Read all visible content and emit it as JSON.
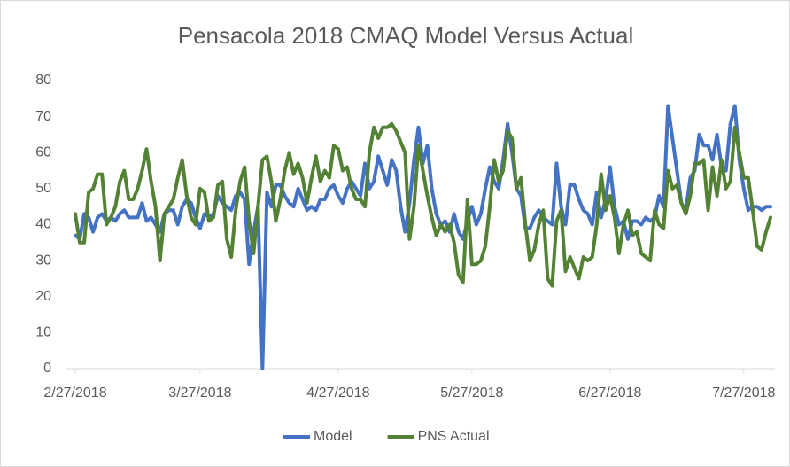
{
  "chart_data": {
    "type": "line",
    "title": "Pensacola 2018 CMAQ Model Versus Actual",
    "x": [
      "2/27/2018",
      "2/28/2018",
      "3/1/2018",
      "3/2/2018",
      "3/3/2018",
      "3/4/2018",
      "3/5/2018",
      "3/6/2018",
      "3/7/2018",
      "3/8/2018",
      "3/9/2018",
      "3/10/2018",
      "3/11/2018",
      "3/12/2018",
      "3/13/2018",
      "3/14/2018",
      "3/15/2018",
      "3/16/2018",
      "3/17/2018",
      "3/18/2018",
      "3/19/2018",
      "3/20/2018",
      "3/21/2018",
      "3/22/2018",
      "3/23/2018",
      "3/24/2018",
      "3/25/2018",
      "3/26/2018",
      "3/27/2018",
      "3/28/2018",
      "3/29/2018",
      "3/30/2018",
      "3/31/2018",
      "4/1/2018",
      "4/2/2018",
      "4/3/2018",
      "4/4/2018",
      "4/5/2018",
      "4/6/2018",
      "4/7/2018",
      "4/8/2018",
      "4/9/2018",
      "4/10/2018",
      "4/11/2018",
      "4/12/2018",
      "4/13/2018",
      "4/14/2018",
      "4/15/2018",
      "4/16/2018",
      "4/17/2018",
      "4/18/2018",
      "4/19/2018",
      "4/20/2018",
      "4/21/2018",
      "4/22/2018",
      "4/23/2018",
      "4/24/2018",
      "4/25/2018",
      "4/26/2018",
      "4/27/2018",
      "4/28/2018",
      "4/29/2018",
      "4/30/2018",
      "5/1/2018",
      "5/2/2018",
      "5/3/2018",
      "5/4/2018",
      "5/5/2018",
      "5/6/2018",
      "5/7/2018",
      "5/8/2018",
      "5/9/2018",
      "5/10/2018",
      "5/11/2018",
      "5/12/2018",
      "5/13/2018",
      "5/14/2018",
      "5/15/2018",
      "5/16/2018",
      "5/17/2018",
      "5/18/2018",
      "5/19/2018",
      "5/20/2018",
      "5/21/2018",
      "5/22/2018",
      "5/23/2018",
      "5/24/2018",
      "5/25/2018",
      "5/26/2018",
      "5/27/2018",
      "5/28/2018",
      "5/29/2018",
      "5/30/2018",
      "5/31/2018",
      "6/1/2018",
      "6/2/2018",
      "6/3/2018",
      "6/4/2018",
      "6/5/2018",
      "6/6/2018",
      "6/7/2018",
      "6/8/2018",
      "6/9/2018",
      "6/10/2018",
      "6/11/2018",
      "6/12/2018",
      "6/13/2018",
      "6/14/2018",
      "6/15/2018",
      "6/16/2018",
      "6/17/2018",
      "6/18/2018",
      "6/19/2018",
      "6/20/2018",
      "6/21/2018",
      "6/22/2018",
      "6/23/2018",
      "6/24/2018",
      "6/25/2018",
      "6/26/2018",
      "6/27/2018",
      "6/28/2018",
      "6/29/2018",
      "6/30/2018",
      "7/1/2018",
      "7/2/2018",
      "7/3/2018",
      "7/4/2018",
      "7/5/2018",
      "7/6/2018",
      "7/7/2018",
      "7/8/2018",
      "7/9/2018",
      "7/10/2018",
      "7/11/2018",
      "7/12/2018",
      "7/13/2018",
      "7/14/2018",
      "7/15/2018",
      "7/16/2018",
      "7/17/2018",
      "7/18/2018",
      "7/19/2018",
      "7/20/2018",
      "7/21/2018",
      "7/22/2018",
      "7/23/2018",
      "7/24/2018",
      "7/25/2018",
      "7/26/2018",
      "7/27/2018",
      "7/28/2018",
      "7/29/2018",
      "7/30/2018",
      "7/31/2018",
      "8/1/2018",
      "8/2/2018"
    ],
    "series": [
      {
        "name": "Model",
        "color": "#4472c4",
        "values": [
          37,
          36,
          43,
          42,
          38,
          42,
          43,
          41,
          42,
          41,
          43,
          44,
          42,
          42,
          42,
          46,
          41,
          42,
          40,
          38,
          43,
          44,
          44,
          40,
          45,
          47,
          46,
          42,
          39,
          43,
          42,
          43,
          48,
          46,
          45,
          44,
          48,
          49,
          47,
          29,
          38,
          45,
          0,
          49,
          45,
          51,
          51,
          48,
          46,
          45,
          50,
          47,
          44,
          45,
          44,
          47,
          47,
          50,
          51,
          48,
          46,
          50,
          52,
          50,
          48,
          57,
          50,
          52,
          59,
          55,
          51,
          58,
          55,
          45,
          38,
          46,
          58,
          67,
          57,
          62,
          50,
          43,
          40,
          41,
          38,
          43,
          38,
          36,
          41,
          45,
          40,
          43,
          50,
          56,
          52,
          50,
          58,
          68,
          60,
          50,
          48,
          39,
          39,
          42,
          44,
          42,
          41,
          40,
          57,
          45,
          40,
          51,
          51,
          47,
          44,
          43,
          40,
          49,
          42,
          47,
          56,
          45,
          40,
          41,
          36,
          41,
          41,
          40,
          42,
          41,
          42,
          48,
          45,
          73,
          64,
          55,
          46,
          44,
          53,
          55,
          65,
          62,
          62,
          58,
          65,
          56,
          55,
          68,
          73,
          58,
          50,
          44,
          45,
          45,
          44,
          45,
          45
        ]
      },
      {
        "name": "PNS Actual",
        "color": "#548235",
        "values": [
          43,
          35,
          35,
          49,
          50,
          54,
          54,
          40,
          42,
          45,
          52,
          55,
          47,
          47,
          50,
          55,
          61,
          52,
          45,
          30,
          43,
          45,
          47,
          53,
          58,
          48,
          42,
          40,
          50,
          49,
          41,
          42,
          51,
          52,
          36,
          31,
          44,
          52,
          56,
          41,
          32,
          45,
          58,
          59,
          52,
          41,
          47,
          55,
          60,
          54,
          57,
          53,
          46,
          53,
          59,
          52,
          55,
          53,
          62,
          61,
          55,
          56,
          50,
          47,
          47,
          45,
          60,
          67,
          64,
          67,
          67,
          68,
          66,
          63,
          60,
          36,
          45,
          62,
          55,
          48,
          42,
          37,
          40,
          38,
          40,
          35,
          26,
          24,
          47,
          29,
          29,
          30,
          34,
          45,
          58,
          52,
          55,
          66,
          64,
          50,
          53,
          40,
          30,
          33,
          40,
          44,
          25,
          23,
          41,
          44,
          27,
          31,
          28,
          25,
          31,
          30,
          31,
          40,
          54,
          44,
          48,
          42,
          32,
          40,
          44,
          37,
          38,
          32,
          31,
          30,
          44,
          40,
          39,
          55,
          50,
          51,
          46,
          43,
          48,
          57,
          57,
          58,
          44,
          56,
          48,
          58,
          50,
          52,
          67,
          60,
          53,
          53,
          44,
          34,
          33,
          38,
          42
        ]
      }
    ],
    "xlim": [
      "2/27/2018",
      "8/2/2018"
    ],
    "xticks": [
      "2/27/2018",
      "3/27/2018",
      "4/27/2018",
      "5/27/2018",
      "6/27/2018",
      "7/27/2018"
    ],
    "ylim": [
      0,
      80
    ],
    "yticks": [
      0,
      10,
      20,
      30,
      40,
      50,
      60,
      70,
      80
    ],
    "grid": false,
    "legend": "bottom"
  }
}
